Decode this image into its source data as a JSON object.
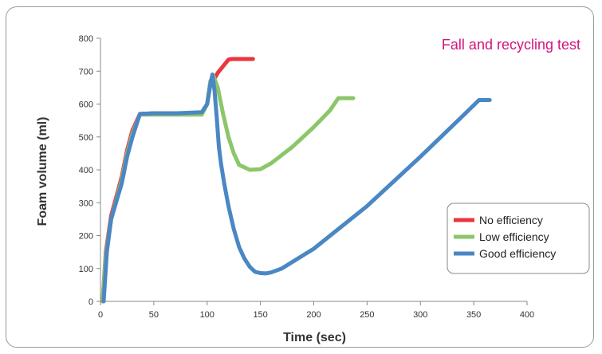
{
  "chart_data": {
    "type": "line",
    "title": "Fall and recycling test",
    "xlabel": "Time (sec)",
    "ylabel": "Foam volume (ml)",
    "xlim": [
      0,
      400
    ],
    "ylim": [
      0,
      800
    ],
    "xticks": [
      0,
      50,
      100,
      150,
      200,
      250,
      300,
      350,
      400
    ],
    "yticks": [
      0,
      100,
      200,
      300,
      400,
      500,
      600,
      700,
      800
    ],
    "grid": false,
    "legend_position": "right",
    "series": [
      {
        "name": "No efficiency",
        "color": "#e8373d",
        "x": [
          2,
          5,
          10,
          15,
          20,
          25,
          30,
          37,
          50,
          70,
          95,
          100,
          103,
          106,
          110,
          115,
          120,
          123,
          130,
          143
        ],
        "y": [
          0,
          150,
          260,
          320,
          380,
          460,
          520,
          570,
          572,
          572,
          572,
          600,
          660,
          672,
          695,
          715,
          735,
          737,
          737,
          737
        ]
      },
      {
        "name": "Low efficiency",
        "color": "#8cc66a",
        "x": [
          2,
          5,
          10,
          15,
          20,
          25,
          30,
          37,
          50,
          70,
          95,
          100,
          103,
          106,
          110,
          115,
          120,
          125,
          130,
          140,
          150,
          160,
          180,
          200,
          215,
          223,
          230,
          237
        ],
        "y": [
          0,
          140,
          250,
          310,
          370,
          450,
          510,
          568,
          568,
          568,
          568,
          600,
          670,
          685,
          650,
          570,
          500,
          450,
          415,
          400,
          402,
          420,
          470,
          530,
          580,
          618,
          618,
          618
        ]
      },
      {
        "name": "Good efficiency",
        "color": "#4a87c4",
        "x": [
          3,
          6,
          10,
          15,
          20,
          25,
          30,
          37,
          50,
          70,
          95,
          100,
          103,
          105,
          107,
          109,
          111,
          113,
          116,
          120,
          125,
          130,
          135,
          140,
          145,
          150,
          155,
          160,
          170,
          200,
          250,
          300,
          340,
          355,
          365
        ],
        "y": [
          0,
          150,
          250,
          305,
          360,
          440,
          500,
          570,
          572,
          572,
          575,
          600,
          660,
          690,
          640,
          560,
          470,
          420,
          360,
          290,
          220,
          165,
          130,
          105,
          90,
          86,
          85,
          88,
          100,
          160,
          290,
          440,
          565,
          612,
          612
        ]
      }
    ]
  }
}
